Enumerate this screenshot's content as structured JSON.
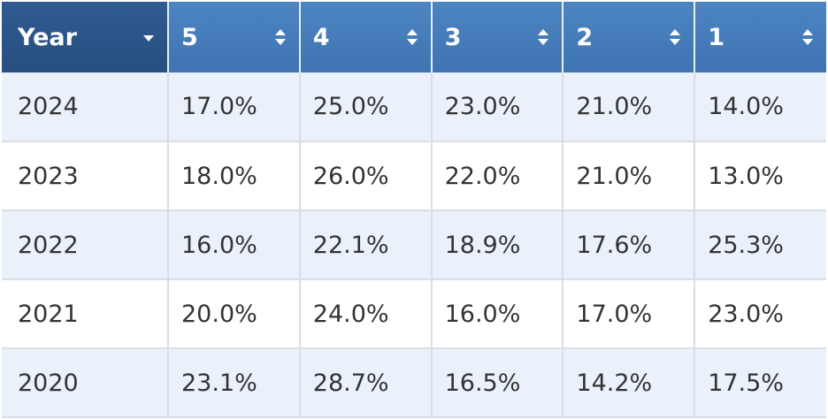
{
  "table": {
    "columns": [
      {
        "label": "Year",
        "control": "dropdown"
      },
      {
        "label": "5",
        "control": "sort"
      },
      {
        "label": "4",
        "control": "sort"
      },
      {
        "label": "3",
        "control": "sort"
      },
      {
        "label": "2",
        "control": "sort"
      },
      {
        "label": "1",
        "control": "sort"
      }
    ],
    "rows": [
      {
        "year": "2024",
        "values": [
          "17.0%",
          "25.0%",
          "23.0%",
          "21.0%",
          "14.0%"
        ]
      },
      {
        "year": "2023",
        "values": [
          "18.0%",
          "26.0%",
          "22.0%",
          "21.0%",
          "13.0%"
        ]
      },
      {
        "year": "2022",
        "values": [
          "16.0%",
          "22.1%",
          "18.9%",
          "17.6%",
          "25.3%"
        ]
      },
      {
        "year": "2021",
        "values": [
          "20.0%",
          "24.0%",
          "16.0%",
          "17.0%",
          "23.0%"
        ]
      },
      {
        "year": "2020",
        "values": [
          "23.1%",
          "28.7%",
          "16.5%",
          "14.2%",
          "17.5%"
        ]
      }
    ]
  },
  "colors": {
    "header_first": "#2f5b92",
    "header": "#4c84c2",
    "row_alt": "#eaf1fb",
    "text": "#333333"
  },
  "icons": {
    "year_column": "chevron-down-icon",
    "value_columns": "sort-icon"
  }
}
